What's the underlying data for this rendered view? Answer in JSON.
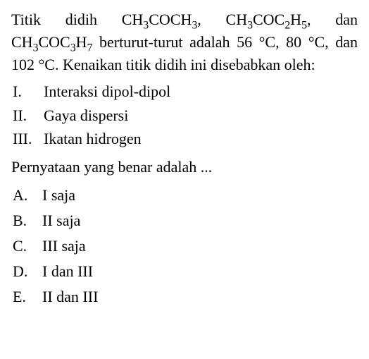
{
  "text_color": "#000000",
  "background_color": "#ffffff",
  "font_family": "Times New Roman",
  "font_size_pt": 17,
  "stem": {
    "p1_a": "Titik didih CH",
    "p1_b": "COCH",
    "p1_c": ", CH",
    "p1_d": "COC",
    "p1_e": "H",
    "p1_f": ",",
    "p2_a": "dan CH",
    "p2_b": "COC",
    "p2_c": "H",
    "p2_d": " berturut-turut adalah",
    "p3": "56 °C, 80 °C, dan 102 °C. Kenaikan titik",
    "p4": "didih ini disebabkan oleh:",
    "sub3": "3",
    "sub2": "2",
    "sub5": "5",
    "sub7": "7"
  },
  "roman": [
    {
      "num": "I.",
      "text": "Interaksi dipol-dipol"
    },
    {
      "num": "II.",
      "text": "Gaya dispersi"
    },
    {
      "num": "III.",
      "text": "Ikatan hidrogen"
    }
  ],
  "prompt": "Pernyataan yang benar adalah ...",
  "options": [
    {
      "letter": "A.",
      "text": "I saja"
    },
    {
      "letter": "B.",
      "text": "II saja"
    },
    {
      "letter": "C.",
      "text": "III saja"
    },
    {
      "letter": "D.",
      "text": "I dan III"
    },
    {
      "letter": "E.",
      "text": "II dan III"
    }
  ]
}
